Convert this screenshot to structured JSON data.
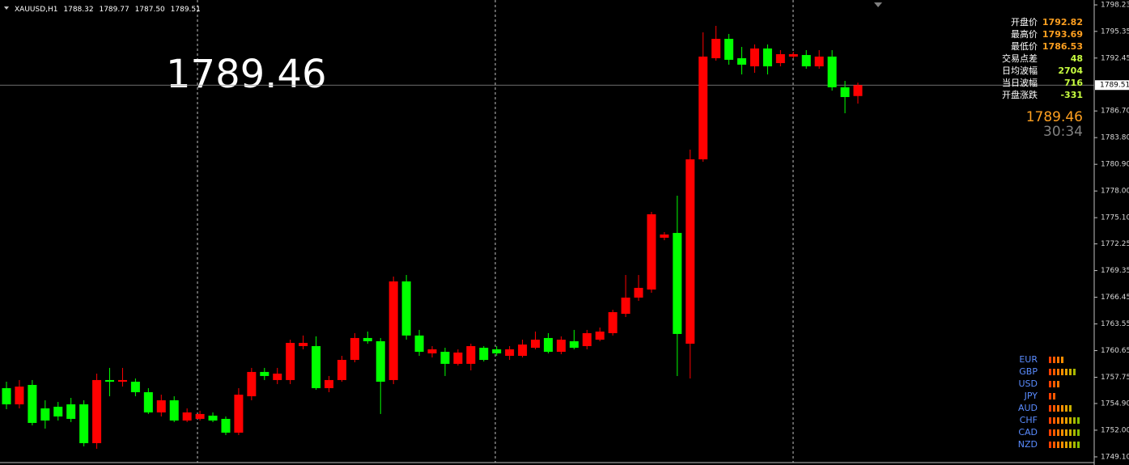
{
  "header": {
    "symbol": "XAUUSD,H1",
    "quotes": [
      "1788.32",
      "1789.77",
      "1787.50",
      "1789.51"
    ]
  },
  "big_price": "1789.46",
  "info_panel": {
    "rows": [
      {
        "label": "开盘价",
        "value": "1792.82",
        "color": "#ffa020"
      },
      {
        "label": "最高价",
        "value": "1793.69",
        "color": "#ffa020"
      },
      {
        "label": "最低价",
        "value": "1786.53",
        "color": "#ffa020"
      },
      {
        "label": "交易点差",
        "value": "48",
        "color": "#c8ff40"
      },
      {
        "label": "日均波幅",
        "value": "2704",
        "color": "#c8ff40"
      },
      {
        "label": "当日波幅",
        "value": "716",
        "color": "#c8ff40"
      },
      {
        "label": "开盘涨跌",
        "value": "-331",
        "color": "#c8ff40"
      }
    ],
    "price": "1789.46",
    "countdown": "30:34"
  },
  "currency_strength": {
    "names": [
      "EUR",
      "GBP",
      "USD",
      "JPY",
      "AUD",
      "CHF",
      "CAD",
      "NZD"
    ],
    "values": [
      4,
      7,
      3,
      2,
      6,
      8,
      8,
      8
    ]
  },
  "chart_data": {
    "type": "candlestick",
    "up_color": "#ff0000",
    "down_color": "#00ff00",
    "ylim": [
      1748.48,
      1798.76
    ],
    "yticks": [
      1798.23,
      1795.35,
      1792.45,
      {
        "value": 1786.7,
        "label": "1786.70"
      },
      {
        "value": 1783.8,
        "label": "1783.80"
      },
      {
        "value": 1780.9,
        "label": "1780.90"
      },
      {
        "value": 1778,
        "label": "1778.00"
      },
      {
        "value": 1775.1,
        "label": "1775.10"
      },
      1772.25,
      1769.35,
      1766.45,
      1763.55,
      1760.65,
      1757.75,
      {
        "value": 1754.9,
        "label": "1754.90"
      },
      {
        "value": 1752,
        "label": "1752.00"
      },
      {
        "value": 1749.1,
        "label": "1749.10"
      }
    ],
    "bid": 1789.51,
    "open": [
      1756.57,
      1754.81,
      1756.92,
      1754.37,
      1754.55,
      1754.81,
      1754.81,
      1750.59,
      1757.45,
      1757.27,
      1757.27,
      1756.13,
      1753.93,
      1755.25,
      1753.05,
      1753.23,
      1753.58,
      1753.23,
      1751.73,
      1755.69,
      1758.33,
      1757.45,
      1757.45,
      1761.14,
      1761.14,
      1756.57,
      1757.45,
      1759.64,
      1762.02,
      1761.67,
      1757.45,
      1768.17,
      1762.29,
      1760.35,
      1760.52,
      1759.21,
      1759.21,
      1760.96,
      1760.79,
      1760.08,
      1760.08,
      1760.96,
      1762.02,
      1760.52,
      1761.67,
      1761.14,
      1761.84,
      1762.55,
      1764.65,
      1766.41,
      1767.29,
      1772.92,
      1773.44,
      1761.4,
      1781.44,
      1792.43,
      1794.54,
      1792.43,
      1791.55,
      1793.49,
      1791.9,
      1792.61,
      1792.78,
      1791.55,
      1792.61,
      1789.27,
      1788.32
    ],
    "high": [
      1757.27,
      1757.45,
      1757.45,
      1755.25,
      1755.07,
      1755.51,
      1755.25,
      1758.15,
      1758.77,
      1758.77,
      1757.62,
      1756.57,
      1755.86,
      1755.69,
      1754.37,
      1754.11,
      1753.93,
      1753.49,
      1756.57,
      1758.77,
      1758.77,
      1758.77,
      1761.84,
      1762.29,
      1762.2,
      1757.89,
      1760.08,
      1762.55,
      1762.72,
      1762.02,
      1768.7,
      1768.87,
      1762.9,
      1761.14,
      1760.96,
      1760.79,
      1761.4,
      1761.14,
      1761.14,
      1761.14,
      1761.84,
      1762.72,
      1762.55,
      1762.2,
      1762.9,
      1762.9,
      1763.16,
      1765.09,
      1768.87,
      1768.87,
      1775.73,
      1773.53,
      1777.49,
      1782.5,
      1795.24,
      1795.95,
      1795.07,
      1793.66,
      1793.93,
      1793.93,
      1793.31,
      1793.13,
      1793.31,
      1793.31,
      1793.31,
      1789.97,
      1789.77
    ],
    "low": [
      1754.28,
      1754.37,
      1752.52,
      1752.17,
      1753.05,
      1752.88,
      1750.24,
      1749.98,
      1755.69,
      1756.74,
      1755.69,
      1753.76,
      1753.49,
      1752.88,
      1752.88,
      1753.05,
      1752.88,
      1751.47,
      1751.47,
      1755.25,
      1757.45,
      1757.01,
      1757.01,
      1760.79,
      1756.39,
      1756.13,
      1757.27,
      1759.38,
      1761.4,
      1753.76,
      1757.01,
      1761.84,
      1760.08,
      1759.91,
      1757.89,
      1759.03,
      1758.5,
      1759.47,
      1760.08,
      1759.64,
      1759.91,
      1760.79,
      1760.35,
      1760.26,
      1760.79,
      1760.79,
      1761.67,
      1762.29,
      1764.3,
      1766.06,
      1766.94,
      1772.65,
      1757.89,
      1757.62,
      1781.18,
      1792.17,
      1791.73,
      1790.67,
      1790.85,
      1790.67,
      1791.55,
      1792.43,
      1791.29,
      1791.29,
      1788.91,
      1786.45,
      1787.5
    ],
    "close": [
      1754.81,
      1756.74,
      1752.79,
      1753.05,
      1753.49,
      1753.23,
      1750.59,
      1757.45,
      1757.27,
      1757.45,
      1756.13,
      1753.93,
      1755.25,
      1753.05,
      1753.93,
      1753.76,
      1753.05,
      1751.73,
      1755.86,
      1758.33,
      1757.89,
      1758.15,
      1761.49,
      1761.49,
      1756.57,
      1757.45,
      1759.64,
      1762.02,
      1761.67,
      1757.27,
      1768.17,
      1762.29,
      1760.52,
      1760.79,
      1759.21,
      1760.44,
      1761.14,
      1759.64,
      1760.35,
      1760.79,
      1761.31,
      1761.84,
      1760.52,
      1761.84,
      1760.96,
      1762.55,
      1762.72,
      1764.83,
      1766.41,
      1767.47,
      1775.47,
      1773.27,
      1762.46,
      1781.44,
      1792.61,
      1794.54,
      1792.26,
      1791.73,
      1793.49,
      1791.55,
      1792.87,
      1792.87,
      1791.55,
      1792.61,
      1789.27,
      1788.21,
      1789.51
    ]
  }
}
